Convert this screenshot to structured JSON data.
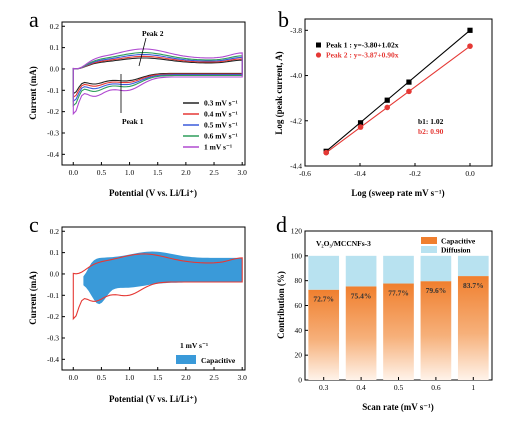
{
  "panel_labels": [
    "a",
    "b",
    "c",
    "d"
  ],
  "chart_data": [
    {
      "panel": "a",
      "type": "line",
      "xlabel": "Potential (V vs. Li/Li⁺)",
      "ylabel": "Current (mA)",
      "xlim": [
        -0.2,
        3.05
      ],
      "ylim": [
        -0.45,
        0.22
      ],
      "xticks": [
        "0.0",
        "0.5",
        "1.0",
        "1.5",
        "2.0",
        "2.5",
        "3.0"
      ],
      "yticks": [
        "-0.4",
        "-0.3",
        "-0.2",
        "-0.1",
        "0.0",
        "0.1",
        "0.2"
      ],
      "annotations": [
        "Peak 2",
        "Peak 1"
      ],
      "legend_position": "right-bottom",
      "series": [
        {
          "name": "0.3 mV s⁻¹",
          "color": "#222222",
          "scale": 0.55
        },
        {
          "name": "0.4 mV s⁻¹",
          "color": "#e53935",
          "scale": 0.63
        },
        {
          "name": "0.5 mV s⁻¹",
          "color": "#3b5bdb",
          "scale": 0.72
        },
        {
          "name": "0.6 mV s⁻¹",
          "color": "#2e9e5b",
          "scale": 0.82
        },
        {
          "name": "1 mV s⁻¹",
          "color": "#b04ad1",
          "scale": 1.0
        }
      ]
    },
    {
      "panel": "b",
      "type": "scatter",
      "xlabel": "Log (sweep rate mV s⁻¹)",
      "ylabel": "Log (peak current, A)",
      "xlim": [
        -0.6,
        0.08
      ],
      "ylim": [
        -4.4,
        -3.75
      ],
      "xticks": [
        "-0.6",
        "-0.4",
        "-0.2",
        "0.0"
      ],
      "yticks": [
        "-4.4",
        "-4.2",
        "-4.0",
        "-3.8"
      ],
      "legend_position": "top-left",
      "annotations": [
        "b1: 1.02",
        "b2: 0.90"
      ],
      "series": [
        {
          "name": "Peak 1 : y=-3.80+1.02x",
          "color": "#000000",
          "marker": "square",
          "x": [
            -0.523,
            -0.398,
            -0.301,
            -0.222,
            0.0
          ],
          "y": [
            -4.335,
            -4.209,
            -4.109,
            -4.029,
            -3.8
          ]
        },
        {
          "name": "Peak 2 : y=-3.87+0.90x",
          "color": "#e53935",
          "marker": "circle",
          "x": [
            -0.523,
            -0.398,
            -0.301,
            -0.222,
            0.0
          ],
          "y": [
            -4.341,
            -4.228,
            -4.141,
            -4.07,
            -3.87
          ]
        }
      ]
    },
    {
      "panel": "c",
      "type": "area",
      "xlabel": "Potential (V vs. Li/Li⁺)",
      "ylabel": "Current (mA)",
      "xlim": [
        -0.2,
        3.05
      ],
      "ylim": [
        -0.45,
        0.22
      ],
      "xticks": [
        "0.0",
        "0.5",
        "1.0",
        "1.5",
        "2.0",
        "2.5",
        "3.0"
      ],
      "yticks": [
        "-0.4",
        "-0.3",
        "-0.2",
        "-0.1",
        "0.0",
        "0.1",
        "0.2"
      ],
      "legend_position": "right-bottom",
      "legend_title": "1 mV s⁻¹",
      "series": [
        {
          "name": "Capacitive",
          "color": "#3a9ad9"
        }
      ],
      "outline_color": "#e53935"
    },
    {
      "panel": "d",
      "type": "bar",
      "xlabel": "Scan rate (mV s⁻¹)",
      "ylabel": "Contribution (%)",
      "ylim": [
        0,
        120
      ],
      "yticks": [
        "0",
        "20",
        "40",
        "60",
        "80",
        "100",
        "120"
      ],
      "categories": [
        "0.3",
        "0.4",
        "0.5",
        "0.6",
        "1"
      ],
      "sample_label": "V₂O₃/MCCNFs-3",
      "legend_position": "top-right",
      "series": [
        {
          "name": "Capacitive",
          "color": "#f07f2e",
          "values": [
            72.7,
            75.4,
            77.7,
            79.6,
            83.7
          ],
          "labels": [
            "72.7%",
            "75.4%",
            "77.7%",
            "79.6%",
            "83.7%"
          ]
        },
        {
          "name": "Diffusion",
          "color": "#b8e2f0",
          "values": [
            27.3,
            24.6,
            22.3,
            20.4,
            16.3
          ]
        }
      ]
    }
  ]
}
